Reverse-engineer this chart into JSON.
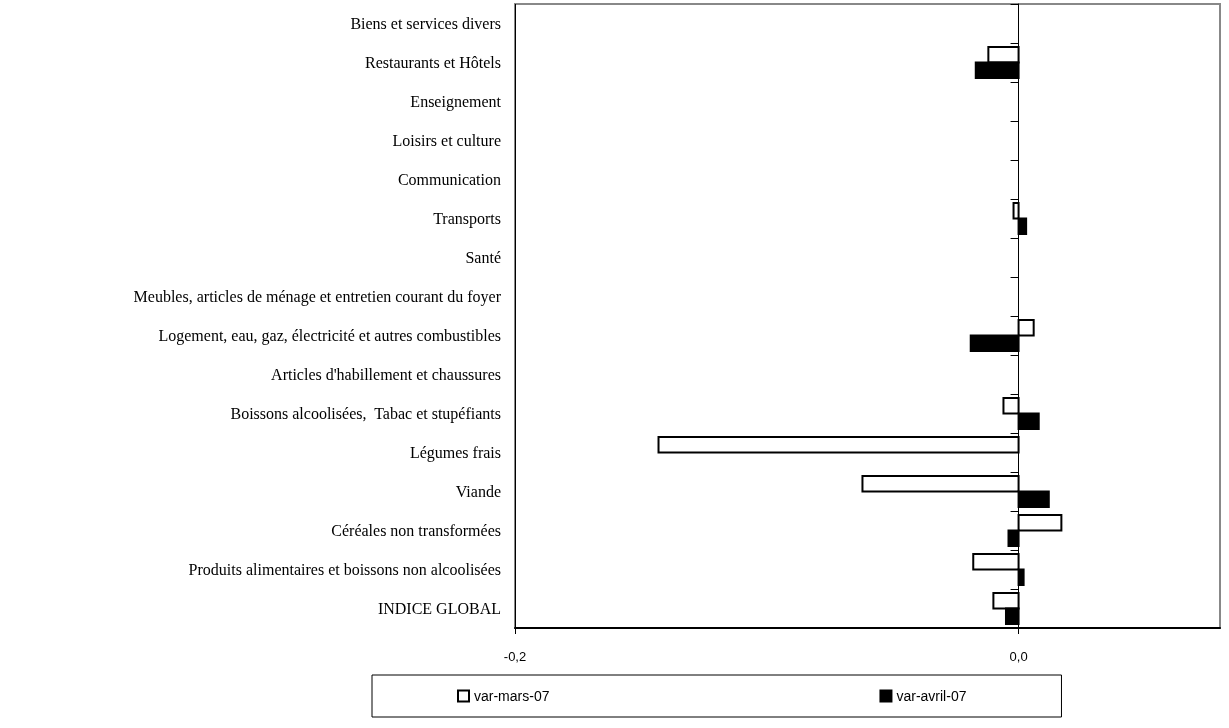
{
  "chart_data": {
    "type": "bar",
    "orientation": "horizontal",
    "categories": [
      "Biens et services divers",
      "Restaurants et Hôtels",
      "Enseignement",
      "Loisirs et culture",
      "Communication",
      "Transports",
      "Santé",
      "Meubles, articles de ménage et entretien courant du foyer",
      "Logement, eau, gaz, électricité et autres combustibles",
      "Articles d'habillement et chaussures",
      "Boissons alcoolisées,  Tabac et stupéfiants",
      "Légumes frais",
      "Viande",
      "Céréales non transformées",
      "Produits alimentaires et boissons non alcoolisées",
      "INDICE GLOBAL"
    ],
    "series": [
      {
        "name": "var-mars-07",
        "color": "#ffffff",
        "values": [
          null,
          -0.012,
          null,
          null,
          null,
          -0.002,
          null,
          null,
          0.006,
          null,
          -0.006,
          -0.143,
          -0.062,
          0.017,
          -0.018,
          -0.01
        ]
      },
      {
        "name": "var-avril-07",
        "color": "#000000",
        "values": [
          null,
          -0.017,
          null,
          null,
          null,
          0.003,
          null,
          null,
          -0.019,
          null,
          0.008,
          null,
          0.012,
          -0.004,
          0.002,
          -0.005
        ]
      }
    ],
    "xlim": [
      -0.2,
      0.08
    ],
    "xticks": [
      {
        "value": -0.2,
        "label": "-0,2"
      },
      {
        "value": 0.0,
        "label": "0,0"
      }
    ],
    "grid": "x",
    "legend": "bottom"
  }
}
